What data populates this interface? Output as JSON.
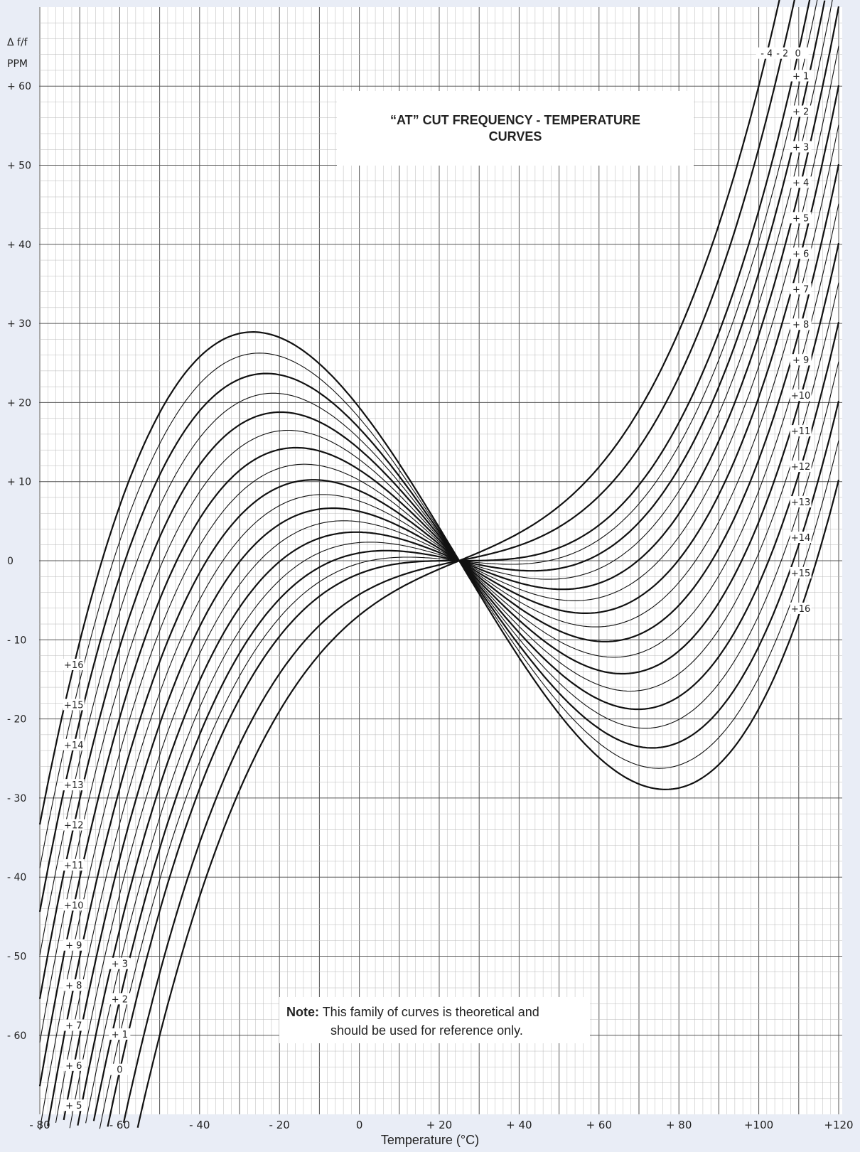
{
  "chart_data": {
    "type": "line",
    "title": "“AT” CUT FREQUENCY - TEMPERATURE CURVES",
    "ylabel": "Δ f/f",
    "yunit": "PPM",
    "xlabel": "Temperature (°C)",
    "xlim": [
      -80,
      120
    ],
    "ylim": [
      -70,
      60
    ],
    "grid": true,
    "x_ticks": [
      "- 80",
      "- 60",
      "- 40",
      "- 20",
      "0",
      "+ 20",
      "+ 40",
      "+ 60",
      "+ 80",
      "+100",
      "+120"
    ],
    "y_ticks": [
      "+ 60",
      "+ 50",
      "+ 40",
      "+ 30",
      "+ 20",
      "+ 10",
      "0",
      "- 10",
      "- 20",
      "- 30",
      "- 40",
      "- 50",
      "- 60"
    ],
    "inflection_temperature": 25,
    "cubic_coefficient": 0.000105,
    "series": [
      {
        "name": "- 4",
        "angle_offset": -4
      },
      {
        "name": "- 2",
        "angle_offset": -2
      },
      {
        "name": "0",
        "angle_offset": 0
      },
      {
        "name": "+ 1",
        "angle_offset": 1
      },
      {
        "name": "+ 2",
        "angle_offset": 2
      },
      {
        "name": "+ 3",
        "angle_offset": 3
      },
      {
        "name": "+ 4",
        "angle_offset": 4
      },
      {
        "name": "+ 5",
        "angle_offset": 5
      },
      {
        "name": "+ 6",
        "angle_offset": 6
      },
      {
        "name": "+ 7",
        "angle_offset": 7
      },
      {
        "name": "+ 8",
        "angle_offset": 8
      },
      {
        "name": "+ 9",
        "angle_offset": 9
      },
      {
        "name": "+10",
        "angle_offset": 10
      },
      {
        "name": "+11",
        "angle_offset": 11
      },
      {
        "name": "+12",
        "angle_offset": 12
      },
      {
        "name": "+13",
        "angle_offset": 13
      },
      {
        "name": "+14",
        "angle_offset": 14
      },
      {
        "name": "+15",
        "angle_offset": 15
      },
      {
        "name": "+16",
        "angle_offset": 16
      }
    ]
  },
  "title_box": {
    "line1": "“AT” CUT FREQUENCY - TEMPERATURE",
    "line2": "CURVES"
  },
  "note": {
    "label": "Note:",
    "line1": "This family of curves is theoretical and",
    "line2": "should be used for reference only."
  },
  "colors": {
    "grid_major": "#555555",
    "grid_minor": "#b9b9b9",
    "curve": "#111111",
    "plot_background": "#ffffff"
  }
}
